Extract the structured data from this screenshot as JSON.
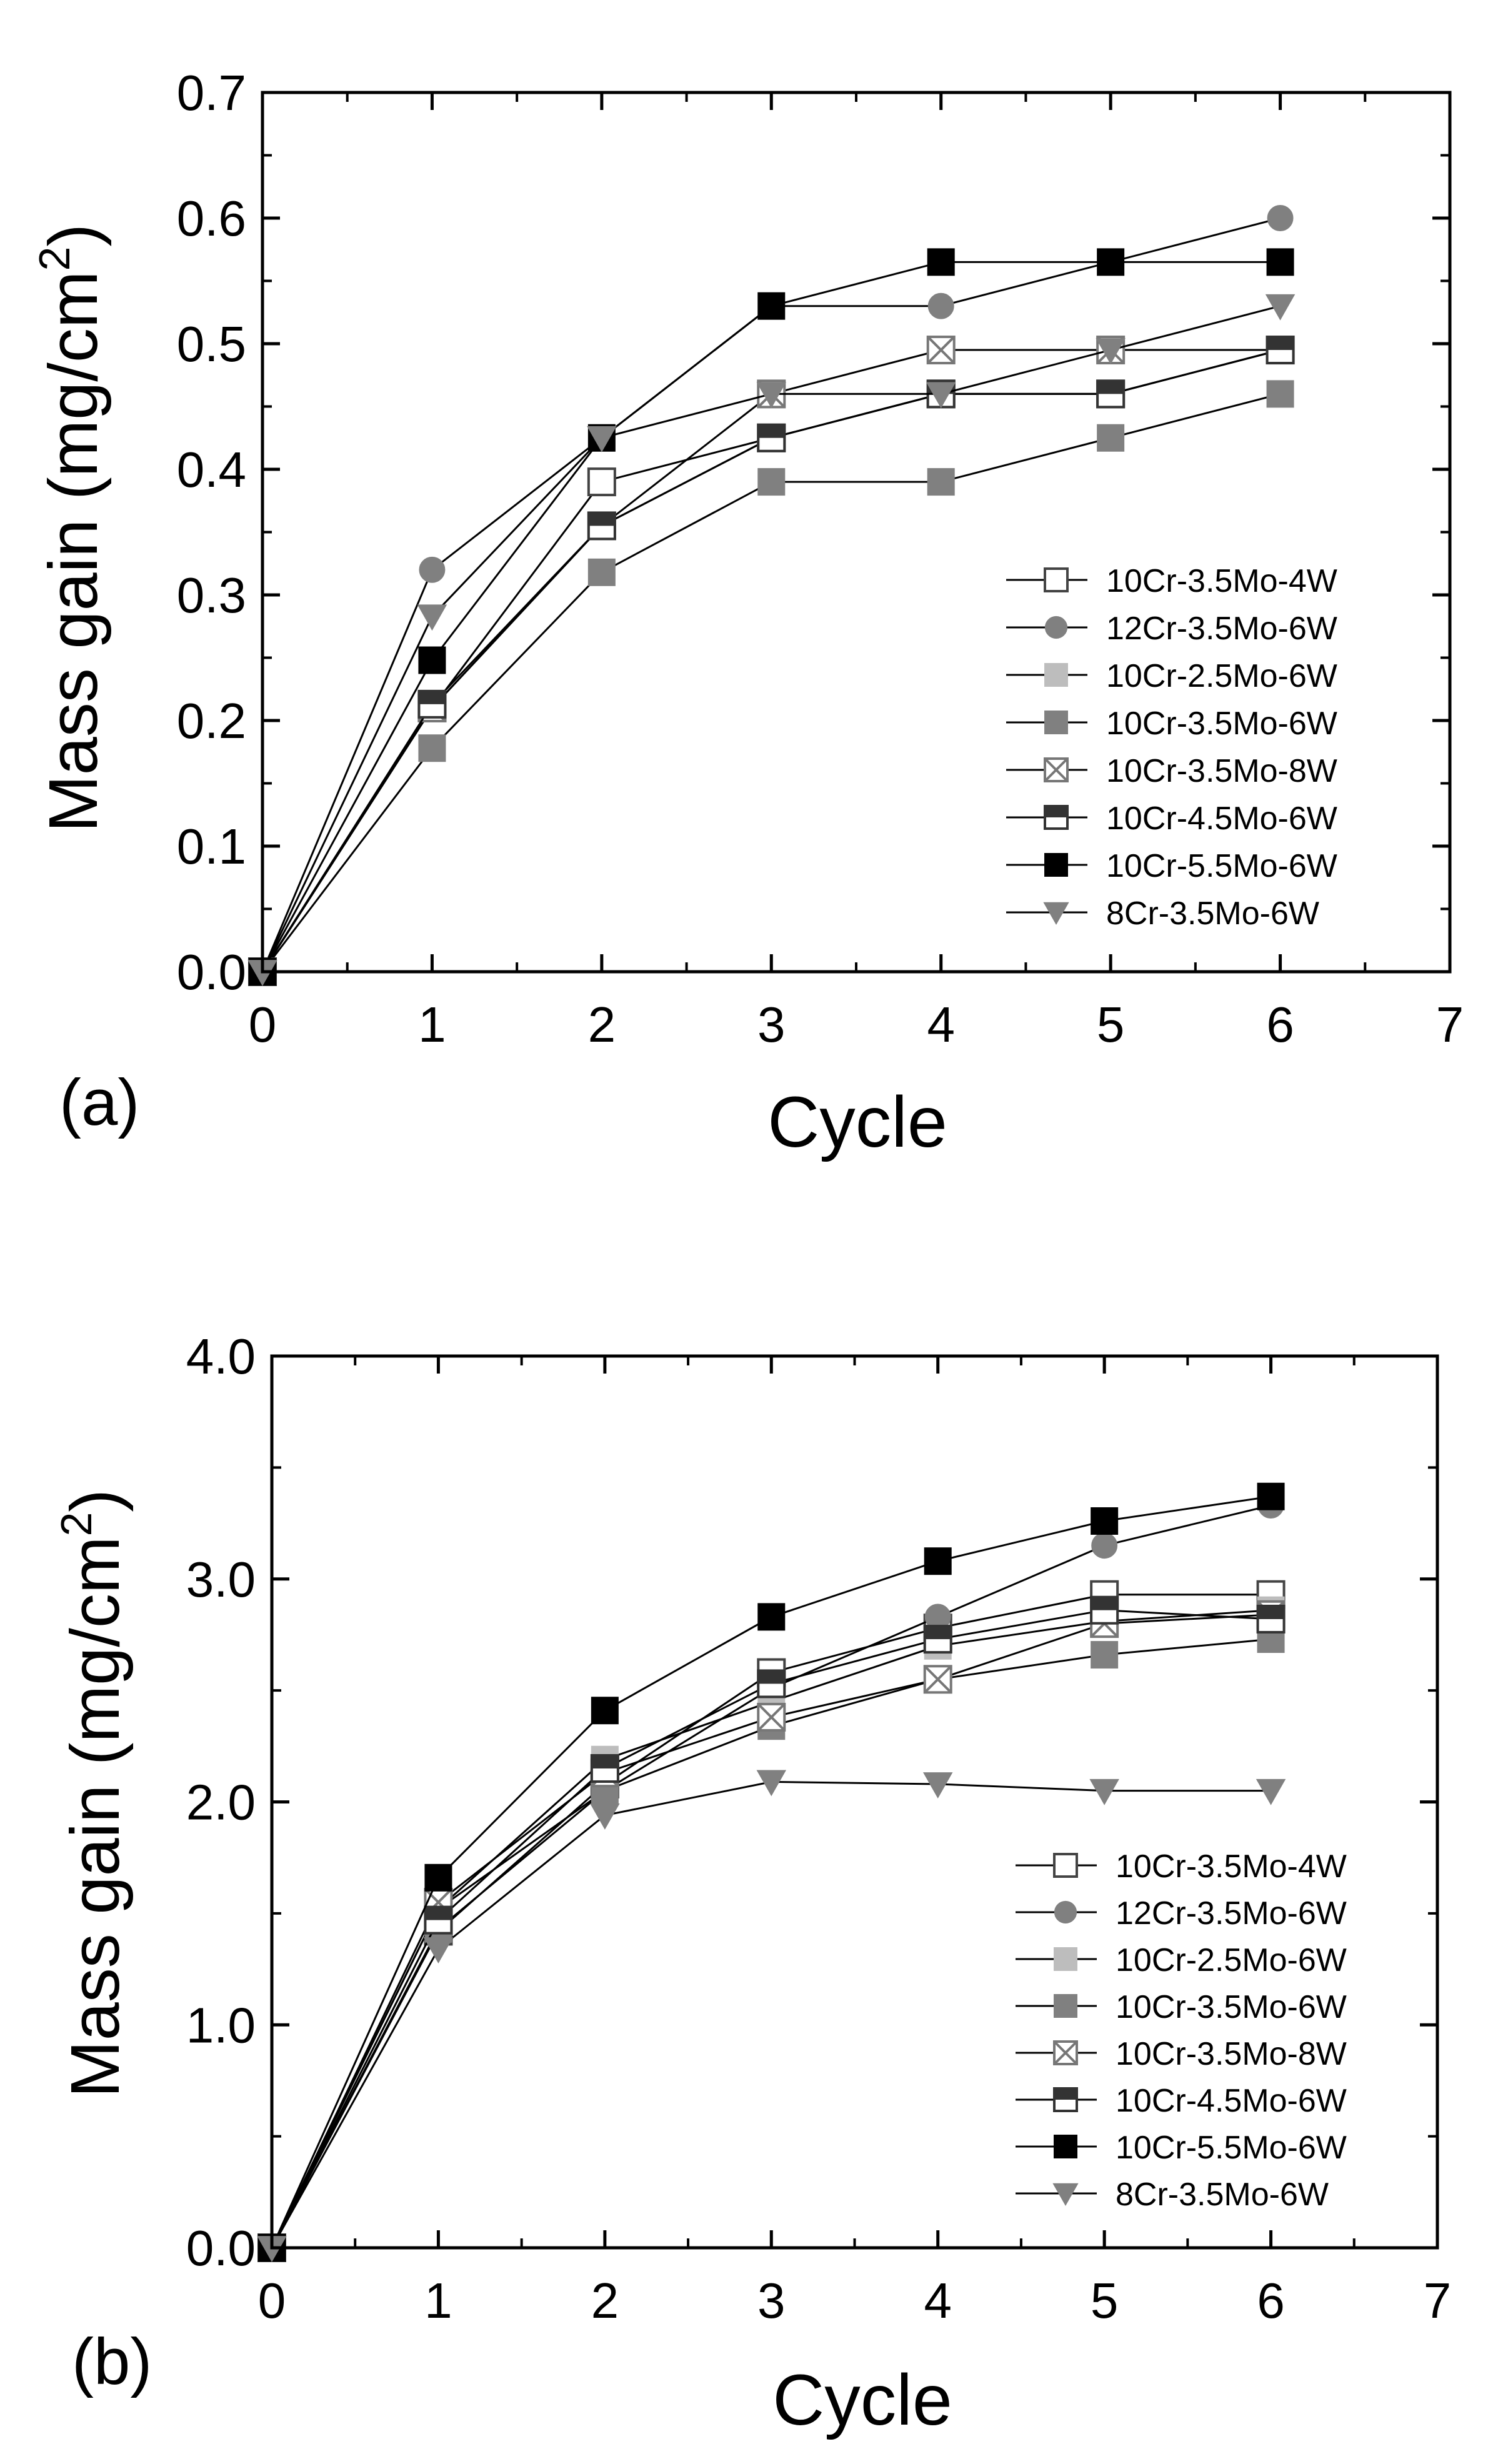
{
  "chart_data": [
    {
      "panel_label": "(a)",
      "type": "line",
      "xlabel": "Cycle",
      "ylabel": "Mass gain (mg/cm",
      "ylabel_sup": "2",
      "ylabel_end": ")",
      "xlim": [
        0,
        7
      ],
      "ylim": [
        0.0,
        0.7
      ],
      "xticks": [
        0,
        1,
        2,
        3,
        4,
        5,
        6,
        7
      ],
      "xtick_labels": [
        "0",
        "1",
        "2",
        "3",
        "4",
        "5",
        "6",
        "7"
      ],
      "yticks": [
        0.0,
        0.1,
        0.2,
        0.3,
        0.4,
        0.5,
        0.6,
        0.7
      ],
      "ytick_labels": [
        "0.0",
        "0.1",
        "0.2",
        "0.3",
        "0.4",
        "0.5",
        "0.6",
        "0.7"
      ],
      "legend_position": "lower-right",
      "x": [
        0,
        1,
        2,
        3,
        4,
        5,
        6
      ],
      "series": [
        {
          "name": "10Cr-3.5Mo-4W",
          "marker": "square-open",
          "color": "#444444",
          "values": [
            0,
            0.21,
            0.39,
            0.425,
            0.46,
            0.46,
            0.495
          ]
        },
        {
          "name": "12Cr-3.5Mo-6W",
          "marker": "circle",
          "color": "#808080",
          "values": [
            0,
            0.32,
            0.425,
            0.53,
            0.53,
            0.565,
            0.6
          ]
        },
        {
          "name": "10Cr-2.5Mo-6W",
          "marker": "square",
          "color": "#bdbdbd",
          "values": [
            0,
            0.21,
            0.355,
            0.425,
            0.46,
            0.46,
            0.495
          ]
        },
        {
          "name": "10Cr-3.5Mo-6W",
          "marker": "square",
          "color": "#808080",
          "values": [
            0,
            0.178,
            0.318,
            0.39,
            0.39,
            0.425,
            0.46
          ]
        },
        {
          "name": "10Cr-3.5Mo-8W",
          "marker": "square-cross",
          "color": "#777777",
          "values": [
            0,
            0.21,
            0.355,
            0.46,
            0.495,
            0.495,
            0.495
          ]
        },
        {
          "name": "10Cr-4.5Mo-6W",
          "marker": "square-half",
          "color": "#333333",
          "values": [
            0,
            0.213,
            0.355,
            0.425,
            0.46,
            0.46,
            0.495
          ]
        },
        {
          "name": "10Cr-5.5Mo-6W",
          "marker": "square",
          "color": "#000000",
          "values": [
            0,
            0.248,
            0.425,
            0.53,
            0.565,
            0.565,
            0.565
          ]
        },
        {
          "name": "8Cr-3.5Mo-6W",
          "marker": "triangle-down",
          "color": "#808080",
          "values": [
            0,
            0.283,
            0.425,
            0.46,
            0.46,
            0.495,
            0.53
          ]
        }
      ]
    },
    {
      "panel_label": "(b)",
      "type": "line",
      "xlabel": "Cycle",
      "ylabel": "Mass gain (mg/cm",
      "ylabel_sup": "2",
      "ylabel_end": ")",
      "xlim": [
        0,
        7
      ],
      "ylim": [
        0.0,
        4.0
      ],
      "xticks": [
        0,
        1,
        2,
        3,
        4,
        5,
        6,
        7
      ],
      "xtick_labels": [
        "0",
        "1",
        "2",
        "3",
        "4",
        "5",
        "6",
        "7"
      ],
      "yticks": [
        0.0,
        1.0,
        2.0,
        3.0,
        4.0
      ],
      "ytick_labels": [
        "0.0",
        "1.0",
        "2.0",
        "3.0",
        "4.0"
      ],
      "legend_position": "lower-right",
      "x": [
        0,
        1,
        2,
        3,
        4,
        5,
        6
      ],
      "series": [
        {
          "name": "10Cr-3.5Mo-4W",
          "marker": "square-open",
          "color": "#444444",
          "values": [
            0,
            1.42,
            2.08,
            2.58,
            2.78,
            2.93,
            2.93
          ]
        },
        {
          "name": "12Cr-3.5Mo-6W",
          "marker": "circle",
          "color": "#808080",
          "values": [
            0,
            1.52,
            2.05,
            2.51,
            2.83,
            3.15,
            3.33
          ]
        },
        {
          "name": "10Cr-2.5Mo-6W",
          "marker": "square",
          "color": "#bdbdbd",
          "values": [
            0,
            1.52,
            2.19,
            2.45,
            2.7,
            2.81,
            2.86
          ]
        },
        {
          "name": "10Cr-3.5Mo-6W",
          "marker": "square",
          "color": "#808080",
          "values": [
            0,
            1.43,
            2.05,
            2.34,
            2.55,
            2.66,
            2.73
          ]
        },
        {
          "name": "10Cr-3.5Mo-8W",
          "marker": "square-cross",
          "color": "#777777",
          "values": [
            0,
            1.55,
            2.13,
            2.38,
            2.55,
            2.8,
            2.84
          ]
        },
        {
          "name": "10Cr-4.5Mo-6W",
          "marker": "square-half",
          "color": "#333333",
          "values": [
            0,
            1.47,
            2.15,
            2.53,
            2.73,
            2.86,
            2.82
          ]
        },
        {
          "name": "10Cr-5.5Mo-6W",
          "marker": "square",
          "color": "#000000",
          "values": [
            0,
            1.66,
            2.41,
            2.83,
            3.08,
            3.26,
            3.37
          ]
        },
        {
          "name": "8Cr-3.5Mo-6W",
          "marker": "triangle-down",
          "color": "#808080",
          "values": [
            0,
            1.34,
            1.94,
            2.09,
            2.08,
            2.05,
            2.05
          ]
        }
      ]
    }
  ]
}
